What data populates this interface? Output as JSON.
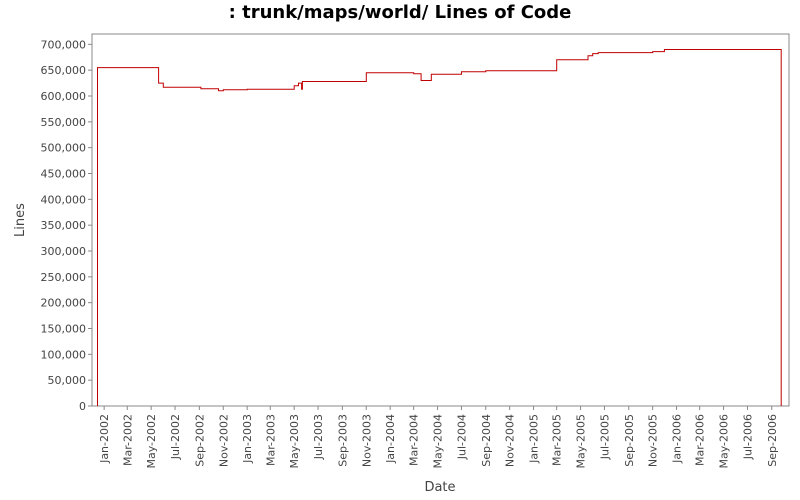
{
  "chart_data": {
    "type": "line",
    "title": ": trunk/maps/world/ Lines of Code",
    "xlabel": "Date",
    "ylabel": "Lines",
    "ylim": [
      0,
      720000
    ],
    "xlim": [
      "2001-12-01",
      "2006-10-15"
    ],
    "y_ticks": [
      0,
      50000,
      100000,
      150000,
      200000,
      250000,
      300000,
      350000,
      400000,
      450000,
      500000,
      550000,
      600000,
      650000,
      700000
    ],
    "y_tick_labels": [
      "0",
      "50,000",
      "100,000",
      "150,000",
      "200,000",
      "250,000",
      "300,000",
      "350,000",
      "400,000",
      "450,000",
      "500,000",
      "550,000",
      "600,000",
      "650,000",
      "700,000"
    ],
    "x_ticks": [
      "2002-01-01",
      "2002-03-01",
      "2002-05-01",
      "2002-07-01",
      "2002-09-01",
      "2002-11-01",
      "2003-01-01",
      "2003-03-01",
      "2003-05-01",
      "2003-07-01",
      "2003-09-01",
      "2003-11-01",
      "2004-01-01",
      "2004-03-01",
      "2004-05-01",
      "2004-07-01",
      "2004-09-01",
      "2004-11-01",
      "2005-01-01",
      "2005-03-01",
      "2005-05-01",
      "2005-07-01",
      "2005-09-01",
      "2005-11-01",
      "2006-01-01",
      "2006-03-01",
      "2006-05-01",
      "2006-07-01",
      "2006-09-01"
    ],
    "x_tick_labels": [
      "Jan-2002",
      "Mar-2002",
      "May-2002",
      "Jul-2002",
      "Sep-2002",
      "Nov-2002",
      "Jan-2003",
      "Mar-2003",
      "May-2003",
      "Jul-2003",
      "Sep-2003",
      "Nov-2003",
      "Jan-2004",
      "Mar-2004",
      "May-2004",
      "Jul-2004",
      "Sep-2004",
      "Nov-2004",
      "Jan-2005",
      "Mar-2005",
      "May-2005",
      "Jul-2005",
      "Sep-2005",
      "Nov-2005",
      "Jan-2006",
      "Mar-2006",
      "May-2006",
      "Jul-2006",
      "Sep-2006"
    ],
    "grid": false,
    "series": [
      {
        "color": "#c00000",
        "step": true,
        "points": [
          [
            "2001-12-15",
            0
          ],
          [
            "2001-12-15",
            655000
          ],
          [
            "2002-05-20",
            625000
          ],
          [
            "2002-06-01",
            617000
          ],
          [
            "2002-09-05",
            614000
          ],
          [
            "2002-10-20",
            610000
          ],
          [
            "2002-11-01",
            612000
          ],
          [
            "2003-01-01",
            613000
          ],
          [
            "2003-05-01",
            620000
          ],
          [
            "2003-05-12",
            625000
          ],
          [
            "2003-05-20",
            613000
          ],
          [
            "2003-05-22",
            628000
          ],
          [
            "2003-11-01",
            645000
          ],
          [
            "2004-03-01",
            643000
          ],
          [
            "2004-03-20",
            630000
          ],
          [
            "2004-04-15",
            642000
          ],
          [
            "2004-07-01",
            647000
          ],
          [
            "2004-09-01",
            649000
          ],
          [
            "2005-03-01",
            670000
          ],
          [
            "2005-05-20",
            678000
          ],
          [
            "2005-06-01",
            682000
          ],
          [
            "2005-06-15",
            684000
          ],
          [
            "2005-11-01",
            686000
          ],
          [
            "2005-12-01",
            690000
          ],
          [
            "2006-09-25",
            690000
          ],
          [
            "2006-09-25",
            0
          ]
        ]
      }
    ]
  }
}
